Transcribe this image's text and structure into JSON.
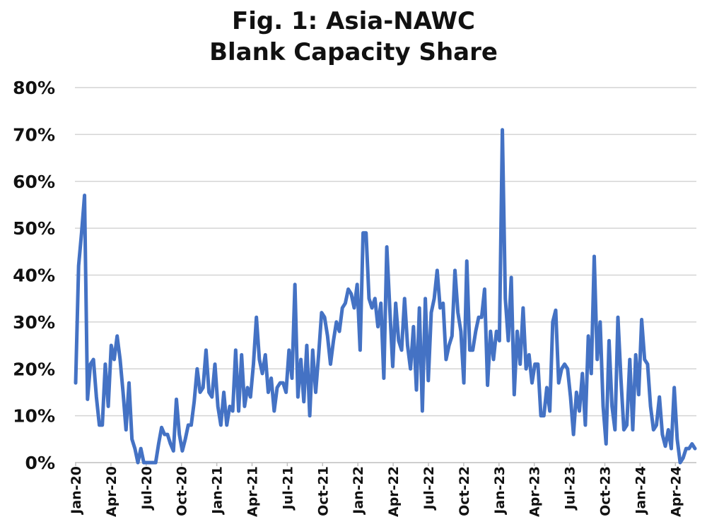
{
  "chart_data": {
    "type": "line",
    "title": "Fig. 1: Asia-NAWC",
    "subtitle": "Blank Capacity Share",
    "xlabel": "",
    "ylabel": "",
    "ylim": [
      0,
      80
    ],
    "yticks": [
      "0%",
      "10%",
      "20%",
      "30%",
      "40%",
      "50%",
      "60%",
      "70%",
      "80%"
    ],
    "xticks": [
      "Jan-20",
      "Apr-20",
      "Jul-20",
      "Oct-20",
      "Jan-21",
      "Apr-21",
      "Jul-21",
      "Oct-21",
      "Jan-22",
      "Apr-22",
      "Jul-22",
      "Oct-22",
      "Jan-23",
      "Apr-23",
      "Jul-23",
      "Oct-23",
      "Jan-24",
      "Apr-24"
    ],
    "grid": true,
    "colors": {
      "series": "#4472C4"
    },
    "series": [
      {
        "values": [
          17,
          42,
          49,
          57,
          13.5,
          21,
          22,
          14,
          8,
          8,
          21,
          12,
          25,
          22,
          27,
          22,
          15,
          7,
          17,
          5,
          3,
          0,
          3,
          0,
          0,
          0,
          0,
          0,
          4,
          7.5,
          6,
          6,
          4,
          2.5,
          13.5,
          6,
          2.5,
          5,
          8,
          8,
          13,
          20,
          15,
          16,
          24,
          15,
          14,
          21,
          12,
          8,
          15,
          8,
          12,
          11,
          24,
          11,
          23,
          12,
          16,
          14,
          21,
          31,
          22,
          19,
          23,
          15,
          18,
          11,
          16,
          17,
          17,
          15,
          24,
          18,
          38,
          14,
          22,
          13,
          25,
          10,
          24,
          15,
          23,
          32,
          31,
          27,
          21,
          26,
          30,
          28,
          33,
          34,
          37,
          36,
          33,
          38,
          24,
          49,
          49,
          35,
          33,
          35,
          29,
          34,
          18,
          46,
          33,
          20.5,
          34,
          26,
          24,
          35,
          25,
          20,
          29,
          15.5,
          33,
          11,
          35,
          17.5,
          32,
          35,
          41,
          33,
          34,
          22,
          25,
          27,
          41,
          32,
          28,
          17,
          43,
          24,
          24,
          28,
          31,
          31,
          37,
          16.5,
          28,
          22,
          28,
          26,
          71,
          35,
          26,
          39.5,
          14.5,
          28,
          21,
          33,
          20,
          23,
          17,
          21,
          21,
          10,
          10,
          16,
          11,
          30,
          32.5,
          17,
          20,
          21,
          20,
          14,
          6,
          15,
          11,
          19,
          8,
          27,
          19,
          44,
          22,
          30,
          12,
          4,
          26,
          12,
          7,
          31,
          18,
          7,
          8,
          22,
          7,
          23,
          14.5,
          30.5,
          22,
          21,
          12,
          7,
          8,
          14,
          6,
          3.5,
          7,
          3,
          16,
          5,
          0,
          1,
          3,
          3,
          4,
          3
        ]
      }
    ]
  }
}
